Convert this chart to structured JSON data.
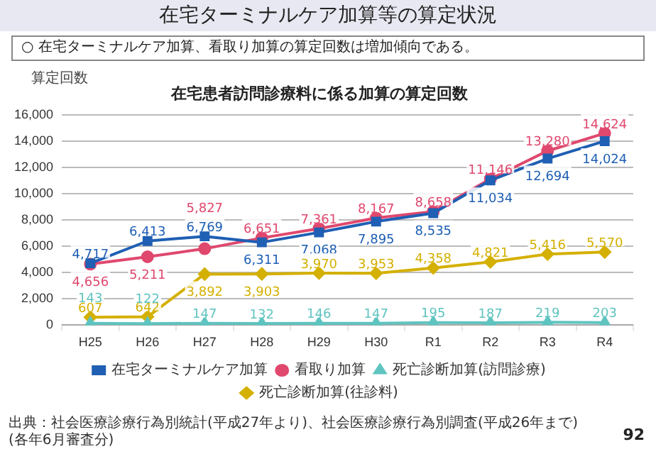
{
  "chart_data": {
    "type": "line",
    "title": "在宅ターミナルケア加算等の算定状況",
    "subtitle": "在宅患者訪問診療料に係る加算の算定回数",
    "ylabel": "算定回数",
    "annotations": [
      "○ 在宅ターミナルケア加算、看取り加算の算定回数は増加傾向である。",
      "出典：社会医療診療行為別統計(平成27年より)、社会医療診療行為別調査(平成26年まで)(各年6月審査分)",
      "92"
    ],
    "categories": [
      "H25",
      "H26",
      "H27",
      "H28",
      "H29",
      "H30",
      "R1",
      "R2",
      "R3",
      "R4"
    ],
    "series": [
      {
        "name": "在宅ターミナルケア加算",
        "color": "#1f5fb4",
        "marker": "square",
        "values": [
          4717,
          6413,
          6769,
          6311,
          7068,
          7895,
          8535,
          11034,
          12694,
          14024
        ],
        "value_labels": [
          "4,717",
          "6,413",
          "6,769",
          "6,311",
          "7,068",
          "7,895",
          "8,535",
          "11,034",
          "12,694",
          "14,024"
        ]
      },
      {
        "name": "看取り加算",
        "color": "#e0486e",
        "marker": "circle",
        "values": [
          4656,
          5211,
          5827,
          6651,
          7361,
          8167,
          8658,
          11146,
          13280,
          14624
        ],
        "value_labels": [
          "4,656",
          "5,211",
          "5,827",
          "6,651",
          "7,361",
          "8,167",
          "8,658",
          "11,146",
          "13,280",
          "14,624"
        ]
      },
      {
        "name": "死亡診断加算(訪問診療)",
        "color": "#5fc4c0",
        "marker": "triangle",
        "values": [
          143,
          122,
          147,
          132,
          146,
          147,
          195,
          187,
          219,
          203
        ],
        "value_labels": [
          "143",
          "122",
          "147",
          "132",
          "146",
          "147",
          "195",
          "187",
          "219",
          "203"
        ]
      },
      {
        "name": "死亡診断加算(往診料)",
        "color": "#d4b000",
        "marker": "diamond",
        "values": [
          607,
          642,
          3892,
          3903,
          3970,
          3953,
          4358,
          4821,
          5416,
          5570
        ],
        "value_labels": [
          "607",
          "642",
          "3,892",
          "3,903",
          "3,970",
          "3,953",
          "4,358",
          "4,821",
          "5,416",
          "5,570"
        ]
      }
    ],
    "ylim": [
      0,
      16000
    ],
    "yticks": [
      0,
      {
        "value": 2000,
        "label": "2,000"
      },
      {
        "value": 4000,
        "label": "4,000"
      },
      {
        "value": 6000,
        "label": "6,000"
      },
      {
        "value": 8000,
        "label": "8,000"
      },
      {
        "value": 10000,
        "label": "10,000"
      },
      {
        "value": 12000,
        "label": "12,000"
      },
      {
        "value": 14000,
        "label": "14,000"
      },
      {
        "value": 16000,
        "label": "16,000"
      }
    ],
    "grid": "y",
    "legend": "bottom",
    "line_style": "solid"
  }
}
